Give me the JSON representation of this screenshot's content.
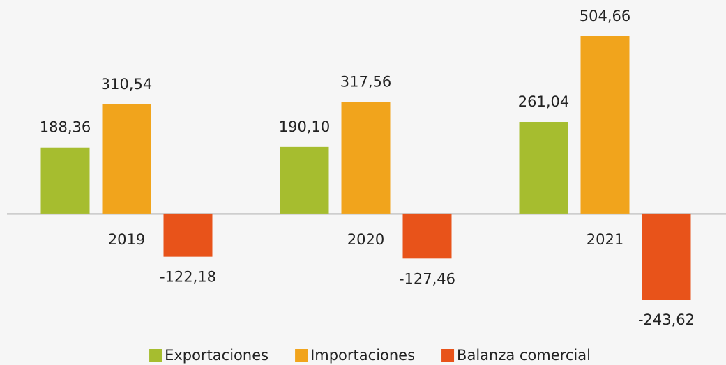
{
  "chart_data": {
    "type": "bar",
    "categories": [
      "2019",
      "2020",
      "2021"
    ],
    "series": [
      {
        "name": "Exportaciones",
        "color": "#a6bd2f",
        "values": [
          188.36,
          190.1,
          261.04
        ],
        "value_labels": [
          "188,36",
          "190,10",
          "261,04"
        ]
      },
      {
        "name": "Importaciones",
        "color": "#f1a41c",
        "values": [
          310.54,
          317.56,
          504.66
        ],
        "value_labels": [
          "310,54",
          "317,56",
          "504,66"
        ]
      },
      {
        "name": "Balanza comercial",
        "color": "#e8531a",
        "values": [
          -122.18,
          -127.46,
          -243.62
        ],
        "value_labels": [
          "-122,18",
          "-127,46",
          "-243,62"
        ]
      }
    ],
    "ylim": [
      -300,
      550
    ],
    "legend": "bottom"
  }
}
